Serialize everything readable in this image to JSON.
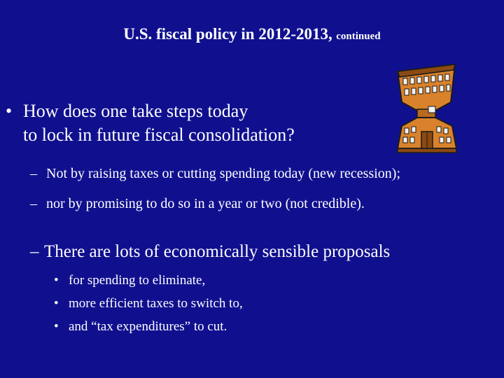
{
  "slide": {
    "title": {
      "main": "U.S. fiscal policy in 2012-2013,",
      "sub": "continued"
    },
    "clip_art": {
      "icon": "building-clipart-icon",
      "colors": {
        "facade": "#d9822b",
        "facade_dark": "#8a4a12",
        "window": "#f2f2f2",
        "outline": "#1a1a1a"
      }
    },
    "main_bullet": {
      "marker": "•",
      "line1": "How does one take steps today",
      "line2": "to lock in future fiscal consolidation?"
    },
    "sub_bullets": [
      {
        "marker": "–",
        "text": "Not by raising taxes or cutting spending today (new recession);"
      },
      {
        "marker": "–",
        "text": "nor by promising to do so in a year or two (not credible)."
      }
    ],
    "proposals": {
      "marker": "–",
      "text": "There are lots of economically sensible proposals",
      "items": [
        {
          "marker": "•",
          "text": "for spending to eliminate,"
        },
        {
          "marker": "•",
          "text": "more efficient taxes to switch to,"
        },
        {
          "marker": "•",
          "text": "and “tax expenditures” to cut."
        }
      ]
    },
    "colors": {
      "background": "#10108f",
      "text": "#ffffff"
    }
  }
}
